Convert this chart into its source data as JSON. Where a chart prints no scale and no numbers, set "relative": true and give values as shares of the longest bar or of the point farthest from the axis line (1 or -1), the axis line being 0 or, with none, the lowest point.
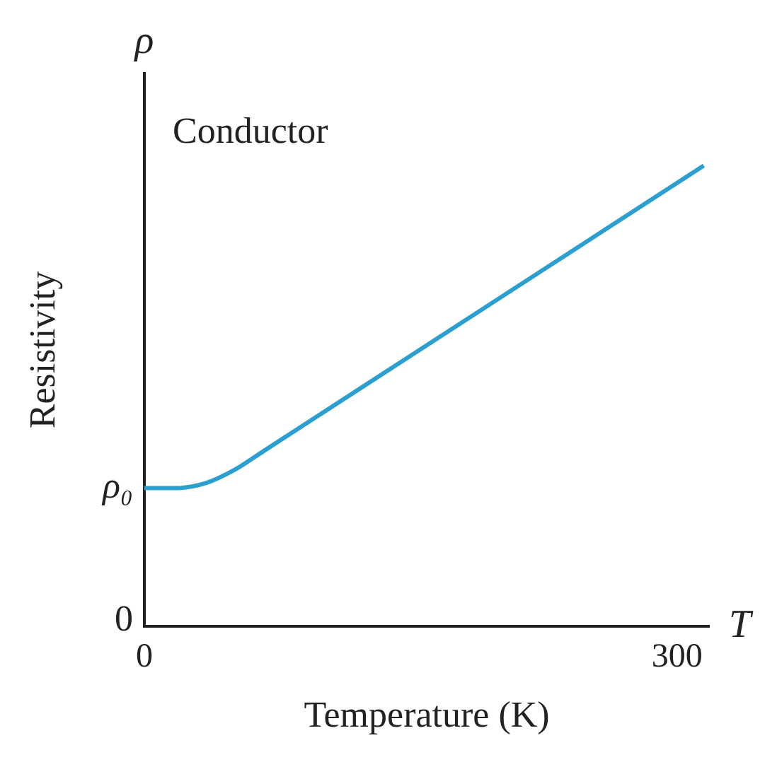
{
  "chart_data": {
    "type": "line",
    "relative": true,
    "xlabel": "Temperature (K)",
    "ylabel": "Resistivity",
    "annotations": [
      "Conductor",
      "ρ",
      "T",
      "0",
      {
        "text": "ρ₀",
        "x": 0,
        "y": 0.3
      }
    ],
    "series": [
      {
        "color": "#2a9fd0",
        "x": [
          0,
          18,
          34,
          51,
          67,
          91,
          155,
          235,
          315
        ],
        "values": [
          0.3,
          0.3,
          0.31,
          0.34,
          0.38,
          0.44,
          0.6,
          0.8,
          1
        ]
      }
    ],
    "xlim": [
      0,
      318
    ],
    "xticks": [
      0,
      300
    ],
    "grid": false,
    "legend": false,
    "marker": "none",
    "line_style": "solid"
  }
}
